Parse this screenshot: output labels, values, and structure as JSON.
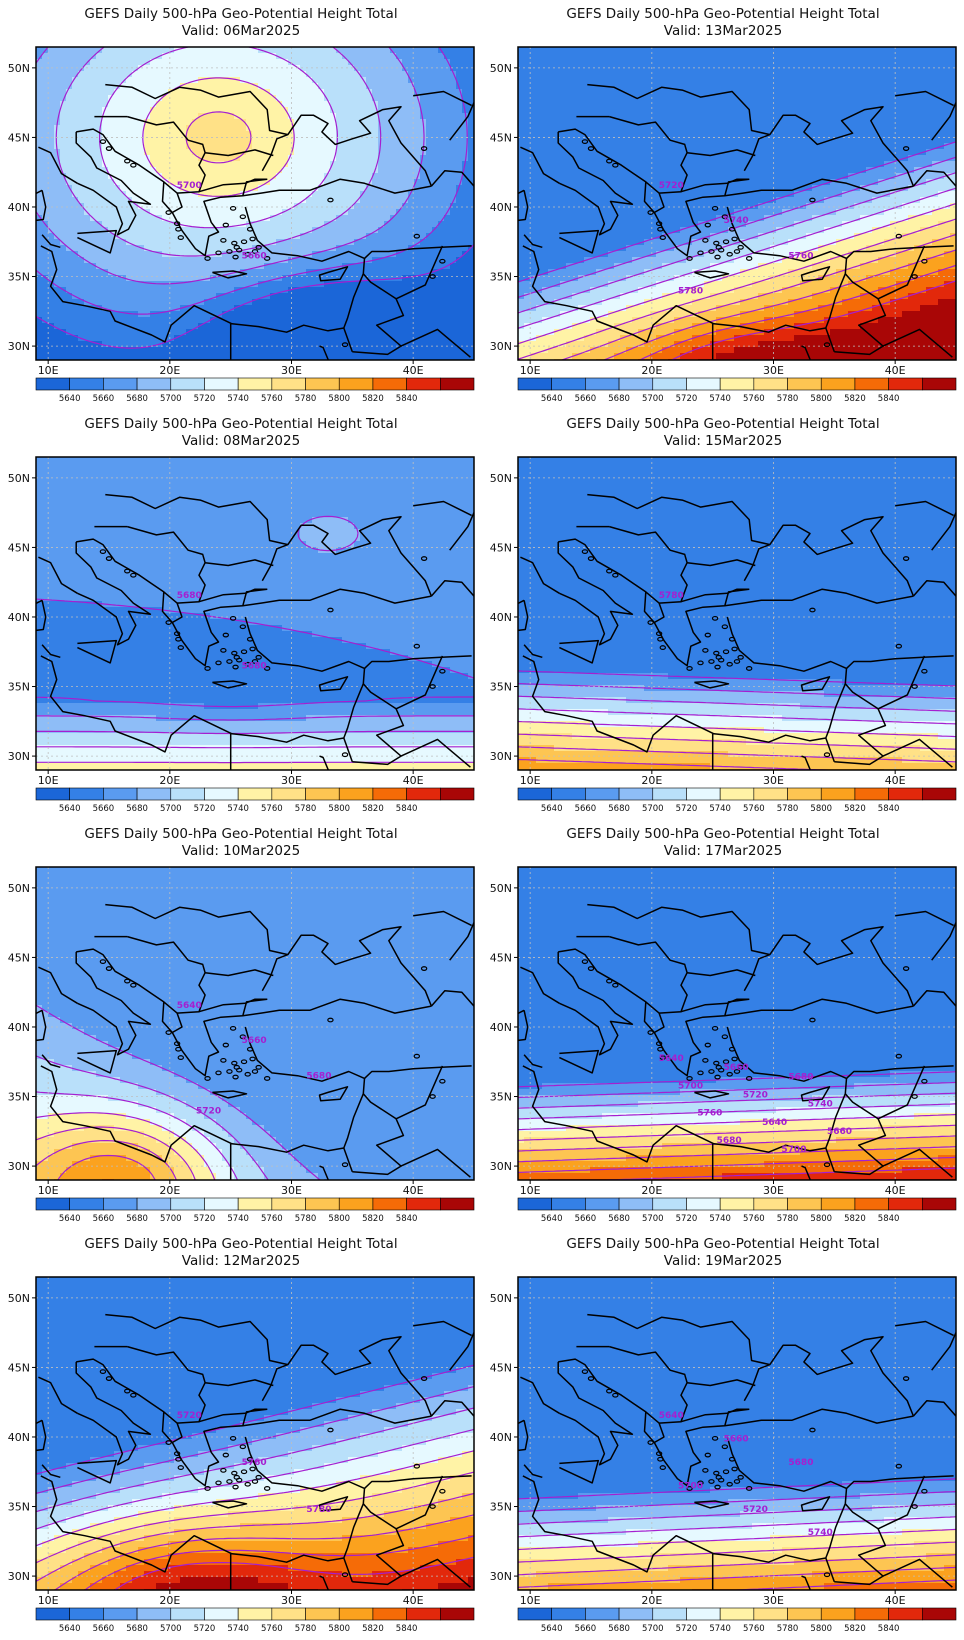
{
  "panels": [
    {
      "title": "GEFS Daily 500-hPa Geo-Potential Height Total",
      "valid": "Valid: 06Mar2025",
      "pattern": "ridge-north",
      "contour_labels": [
        "5700",
        "5660"
      ]
    },
    {
      "title": "GEFS Daily 500-hPa Geo-Potential Height Total",
      "valid": "Valid: 13Mar2025",
      "pattern": "ridge-south-strong",
      "contour_labels": [
        "5720",
        "5740",
        "5760",
        "5780"
      ]
    },
    {
      "title": "GEFS Daily 500-hPa Geo-Potential Height Total",
      "valid": "Valid: 08Mar2025",
      "pattern": "low-uniform",
      "contour_labels": [
        "5680",
        "5680"
      ]
    },
    {
      "title": "GEFS Daily 500-hPa Geo-Potential Height Total",
      "valid": "Valid: 15Mar2025",
      "pattern": "zonal-bands",
      "contour_labels": [
        "5780"
      ]
    },
    {
      "title": "GEFS Daily 500-hPa Geo-Potential Height Total",
      "valid": "Valid: 10Mar2025",
      "pattern": "ridge-southwest",
      "contour_labels": [
        "5640",
        "5660",
        "5680",
        "5720"
      ]
    },
    {
      "title": "GEFS Daily 500-hPa Geo-Potential Height Total",
      "valid": "Valid: 17Mar2025",
      "pattern": "zonal-tight",
      "contour_labels": [
        "5640",
        "5660",
        "5680",
        "5700",
        "5720",
        "5740",
        "5760",
        "5640",
        "5660",
        "5680",
        "5700"
      ]
    },
    {
      "title": "GEFS Daily 500-hPa Geo-Potential Height Total",
      "valid": "Valid: 12Mar2025",
      "pattern": "ridge-south",
      "contour_labels": [
        "5720",
        "5760",
        "5780"
      ]
    },
    {
      "title": "GEFS Daily 500-hPa Geo-Potential Height Total",
      "valid": "Valid: 19Mar2025",
      "pattern": "zonal-south",
      "contour_labels": [
        "5640",
        "5660",
        "5680",
        "5700",
        "5720",
        "5740"
      ]
    }
  ],
  "axes": {
    "lon_labels": [
      "10E",
      "20E",
      "30E",
      "40E"
    ],
    "lat_labels": [
      "50N",
      "45N",
      "40N",
      "35N",
      "30N"
    ]
  },
  "colorbar": {
    "labels": [
      "5640",
      "5660",
      "5680",
      "5700",
      "5720",
      "5740",
      "5760",
      "5780",
      "5800",
      "5820",
      "5840"
    ],
    "colors": [
      "#1b66d8",
      "#3480e6",
      "#5a9bf0",
      "#8ebdf7",
      "#b9e0fa",
      "#e6f9ff",
      "#fff3a6",
      "#ffe187",
      "#fdc552",
      "#fba21e",
      "#f56b07",
      "#e2280b",
      "#a90606"
    ]
  },
  "colors": {
    "contour": "#a51fd0",
    "coast": "#000000",
    "frame": "#000000",
    "grid": "#bfbfbf"
  }
}
